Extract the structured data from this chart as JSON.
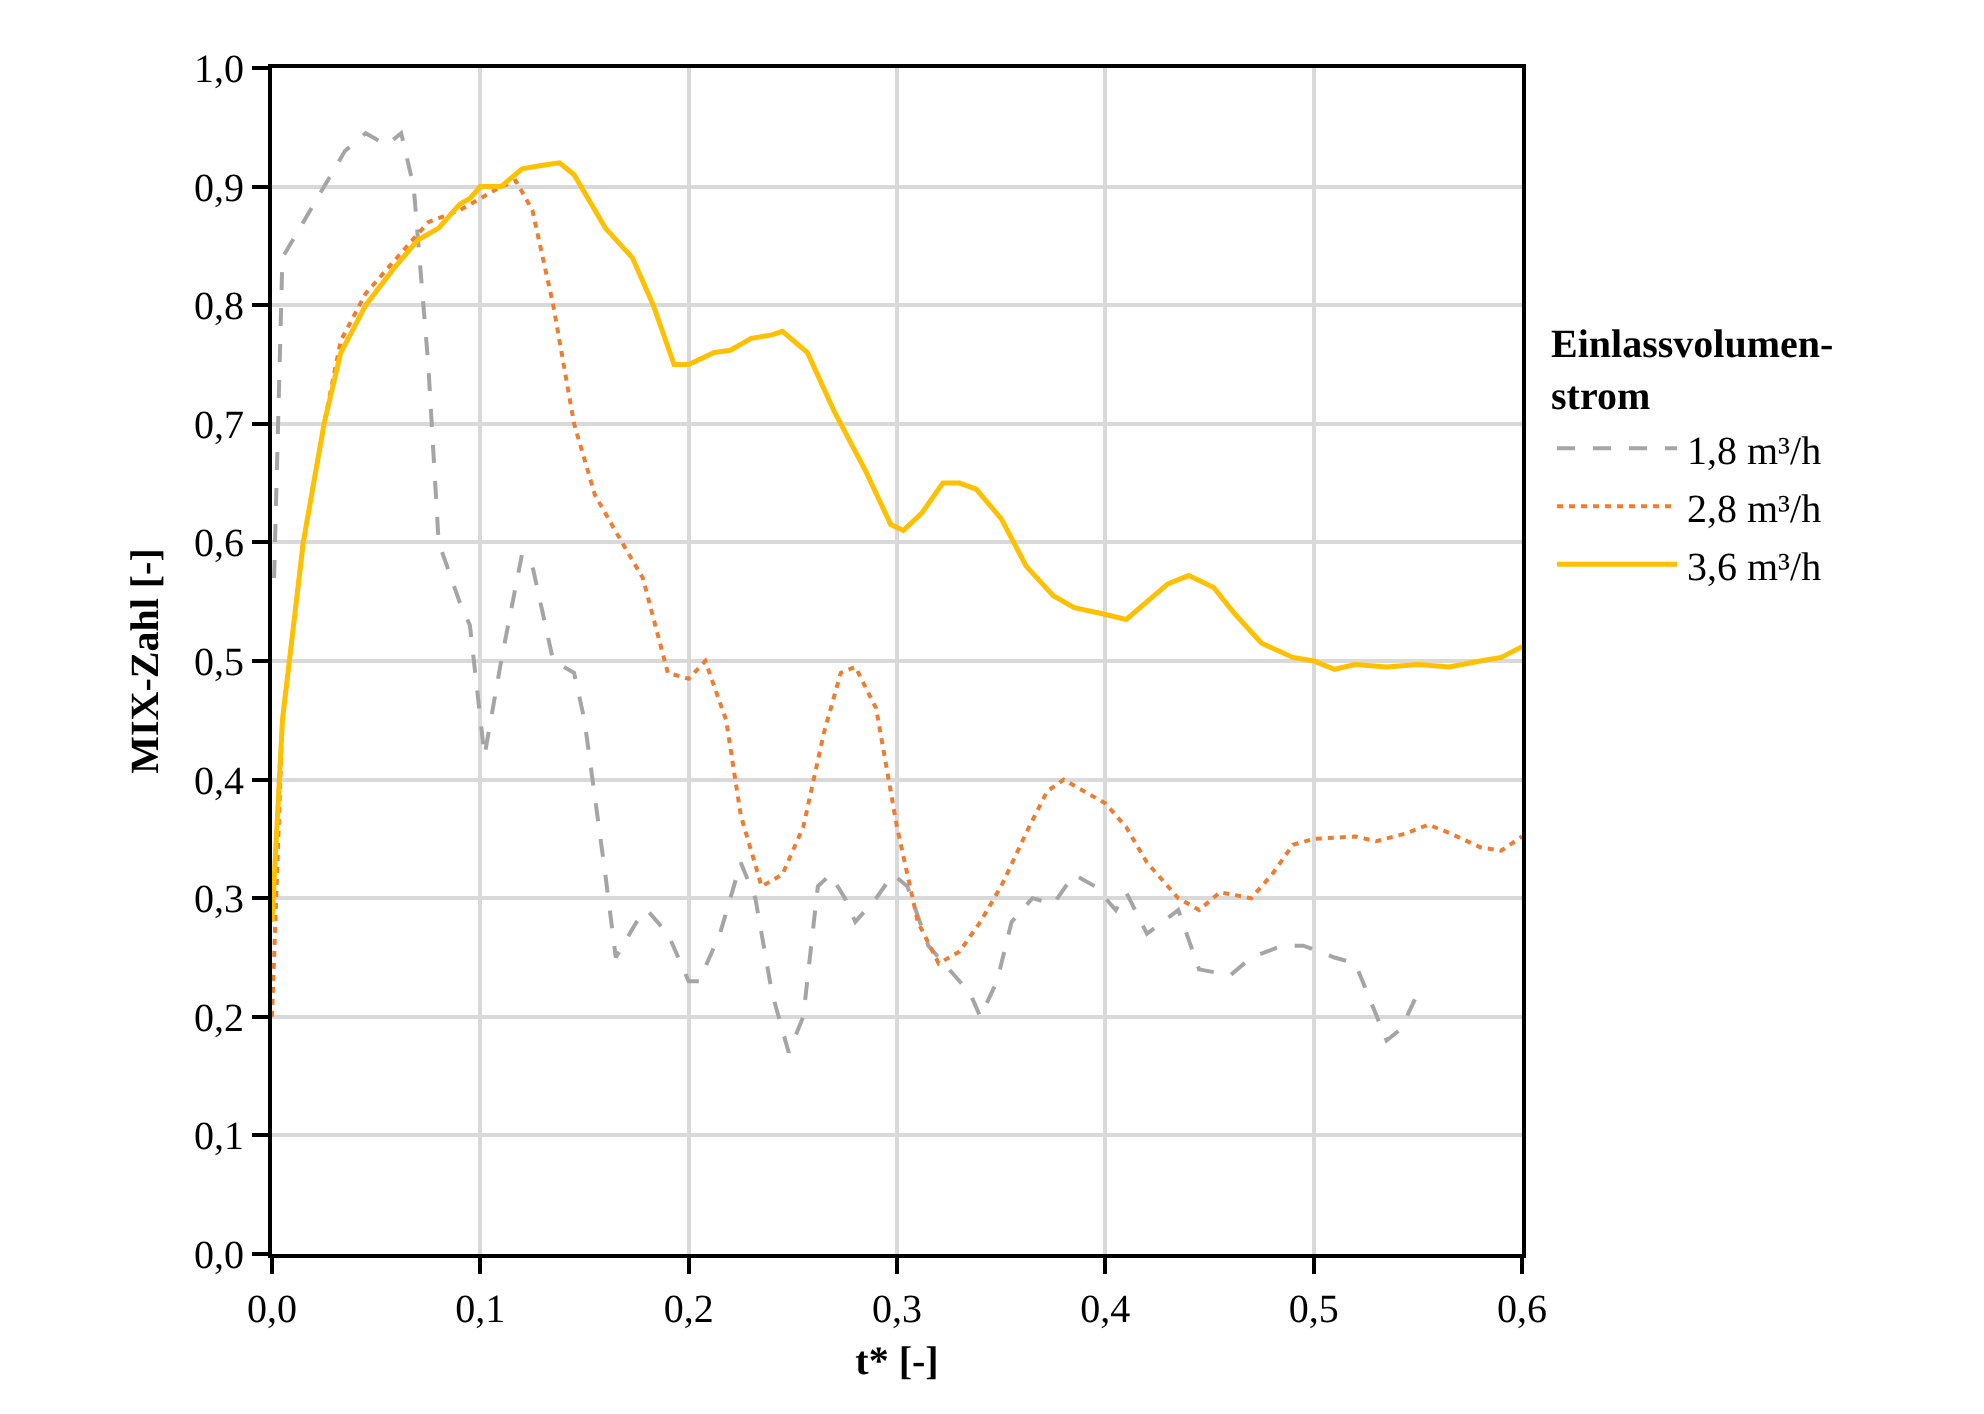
{
  "chart_data": {
    "type": "line",
    "xlabel": "t* [-]",
    "ylabel": "MIX-Zahl [-]",
    "legend_title": "Einlassvolumen-\nstrom",
    "legend": "right",
    "grid": true,
    "marker": "none",
    "xlim": [
      0,
      0.6
    ],
    "xticks": [
      {
        "value": 0,
        "label": "0,0"
      },
      {
        "value": 0.1,
        "label": "0,1"
      },
      {
        "value": 0.2,
        "label": "0,2"
      },
      {
        "value": 0.3,
        "label": "0,3"
      },
      {
        "value": 0.4,
        "label": "0,4"
      },
      {
        "value": 0.5,
        "label": "0,5"
      },
      {
        "value": 0.6,
        "label": "0,6"
      }
    ],
    "ylim": [
      0,
      1
    ],
    "yticks": [
      {
        "value": 0,
        "label": "0,0"
      },
      {
        "value": 0.1,
        "label": "0,1"
      },
      {
        "value": 0.2,
        "label": "0,2"
      },
      {
        "value": 0.3,
        "label": "0,3"
      },
      {
        "value": 0.4,
        "label": "0,4"
      },
      {
        "value": 0.5,
        "label": "0,5"
      },
      {
        "value": 0.6,
        "label": "0,6"
      },
      {
        "value": 0.7,
        "label": "0,7"
      },
      {
        "value": 0.8,
        "label": "0,8"
      },
      {
        "value": 0.9,
        "label": "0,9"
      },
      {
        "value": 1,
        "label": "1,0"
      }
    ],
    "series": [
      {
        "name": "1,8 m³/h",
        "color": "#a5a5a5",
        "line_style": "dashed",
        "x": [
          0.001,
          0.005,
          0.015,
          0.025,
          0.035,
          0.045,
          0.055,
          0.062,
          0.068,
          0.075,
          0.08,
          0.09,
          0.095,
          0.102,
          0.11,
          0.12,
          0.125,
          0.135,
          0.145,
          0.15,
          0.16,
          0.165,
          0.175,
          0.18,
          0.19,
          0.2,
          0.205,
          0.215,
          0.225,
          0.232,
          0.24,
          0.248,
          0.255,
          0.262,
          0.268,
          0.275,
          0.28,
          0.29,
          0.298,
          0.305,
          0.315,
          0.325,
          0.335,
          0.34,
          0.348,
          0.355,
          0.365,
          0.375,
          0.385,
          0.395,
          0.405,
          0.41,
          0.42,
          0.435,
          0.445,
          0.46,
          0.47,
          0.485,
          0.495,
          0.51,
          0.52,
          0.535,
          0.542,
          0.55
        ],
        "values": [
          0.57,
          0.84,
          0.87,
          0.9,
          0.93,
          0.945,
          0.935,
          0.945,
          0.9,
          0.75,
          0.6,
          0.55,
          0.53,
          0.42,
          0.5,
          0.59,
          0.58,
          0.5,
          0.49,
          0.45,
          0.32,
          0.25,
          0.28,
          0.29,
          0.27,
          0.23,
          0.23,
          0.27,
          0.33,
          0.3,
          0.22,
          0.17,
          0.2,
          0.31,
          0.32,
          0.3,
          0.28,
          0.3,
          0.32,
          0.31,
          0.26,
          0.24,
          0.22,
          0.2,
          0.23,
          0.28,
          0.3,
          0.295,
          0.32,
          0.31,
          0.29,
          0.305,
          0.27,
          0.29,
          0.24,
          0.235,
          0.25,
          0.26,
          0.26,
          0.25,
          0.245,
          0.18,
          0.19,
          0.22
        ]
      },
      {
        "name": "2,8 m³/h",
        "color": "#ed7d31",
        "line_style": "dotted",
        "x": [
          0,
          0.005,
          0.015,
          0.025,
          0.033,
          0.045,
          0.06,
          0.075,
          0.09,
          0.1,
          0.11,
          0.117,
          0.125,
          0.135,
          0.145,
          0.155,
          0.168,
          0.178,
          0.19,
          0.2,
          0.208,
          0.218,
          0.225,
          0.235,
          0.245,
          0.255,
          0.265,
          0.273,
          0.28,
          0.29,
          0.3,
          0.31,
          0.32,
          0.33,
          0.34,
          0.35,
          0.362,
          0.372,
          0.38,
          0.39,
          0.4,
          0.41,
          0.42,
          0.435,
          0.445,
          0.455,
          0.47,
          0.48,
          0.49,
          0.5,
          0.52,
          0.53,
          0.545,
          0.555,
          0.565,
          0.58,
          0.59,
          0.6
        ],
        "values": [
          0.2,
          0.45,
          0.6,
          0.7,
          0.77,
          0.81,
          0.84,
          0.87,
          0.88,
          0.89,
          0.9,
          0.905,
          0.88,
          0.8,
          0.7,
          0.64,
          0.6,
          0.57,
          0.49,
          0.485,
          0.5,
          0.45,
          0.37,
          0.31,
          0.32,
          0.36,
          0.44,
          0.49,
          0.495,
          0.46,
          0.36,
          0.28,
          0.245,
          0.255,
          0.28,
          0.31,
          0.355,
          0.39,
          0.4,
          0.39,
          0.38,
          0.36,
          0.33,
          0.3,
          0.29,
          0.305,
          0.3,
          0.32,
          0.345,
          0.35,
          0.352,
          0.348,
          0.355,
          0.362,
          0.355,
          0.343,
          0.34,
          0.352
        ]
      },
      {
        "name": "3,6 m³/h",
        "color": "#ffc000",
        "line_style": "solid",
        "x": [
          0,
          0.005,
          0.015,
          0.025,
          0.033,
          0.045,
          0.058,
          0.07,
          0.08,
          0.09,
          0.095,
          0.1,
          0.11,
          0.12,
          0.13,
          0.138,
          0.145,
          0.16,
          0.173,
          0.183,
          0.193,
          0.2,
          0.212,
          0.22,
          0.23,
          0.24,
          0.245,
          0.257,
          0.27,
          0.285,
          0.297,
          0.303,
          0.312,
          0.322,
          0.33,
          0.338,
          0.35,
          0.362,
          0.375,
          0.385,
          0.398,
          0.41,
          0.42,
          0.43,
          0.44,
          0.452,
          0.462,
          0.475,
          0.49,
          0.5,
          0.51,
          0.52,
          0.535,
          0.55,
          0.565,
          0.58,
          0.59,
          0.6
        ],
        "values": [
          0.28,
          0.45,
          0.6,
          0.7,
          0.76,
          0.8,
          0.83,
          0.855,
          0.865,
          0.885,
          0.89,
          0.9,
          0.9,
          0.915,
          0.918,
          0.92,
          0.91,
          0.865,
          0.84,
          0.8,
          0.75,
          0.75,
          0.76,
          0.762,
          0.772,
          0.775,
          0.778,
          0.76,
          0.71,
          0.66,
          0.615,
          0.61,
          0.625,
          0.65,
          0.65,
          0.645,
          0.62,
          0.58,
          0.555,
          0.545,
          0.54,
          0.535,
          0.55,
          0.565,
          0.572,
          0.562,
          0.54,
          0.515,
          0.503,
          0.5,
          0.493,
          0.497,
          0.495,
          0.497,
          0.495,
          0.5,
          0.503,
          0.512
        ]
      }
    ]
  }
}
